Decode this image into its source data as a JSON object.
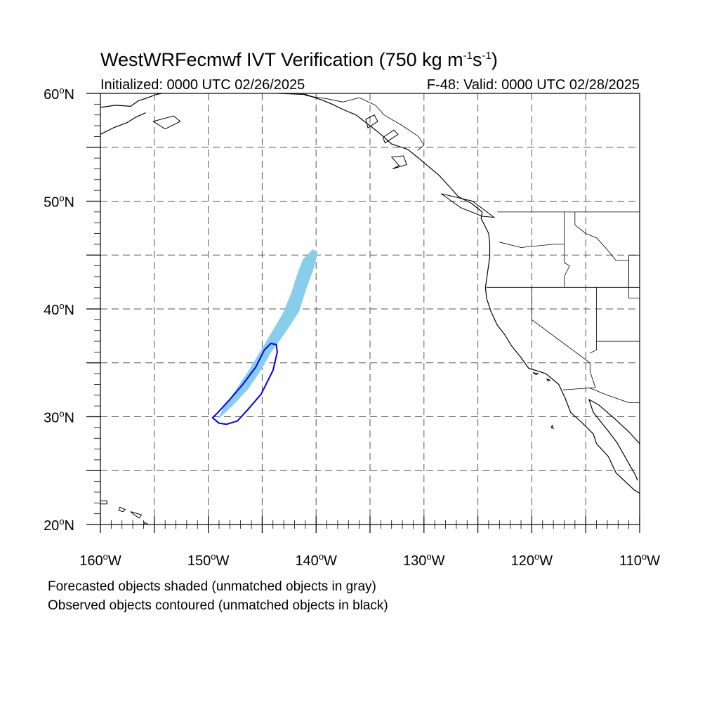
{
  "header": {
    "title_main": "WestWRFecmwf IVT Verification (750 kg m",
    "title_exp1": "-1",
    "title_mid": "s",
    "title_exp2": "-1",
    "title_end": ")",
    "initialized": "Initialized: 0000 UTC 02/26/2025",
    "valid": "F-48: Valid: 0000 UTC 02/28/2025"
  },
  "map": {
    "lat_range": [
      20,
      60
    ],
    "lon_range": [
      -160,
      -110
    ],
    "lat_labels": [
      {
        "lat": 60,
        "deg": "60",
        "hemi": "N"
      },
      {
        "lat": 50,
        "deg": "50",
        "hemi": "N"
      },
      {
        "lat": 40,
        "deg": "40",
        "hemi": "N"
      },
      {
        "lat": 30,
        "deg": "30",
        "hemi": "N"
      },
      {
        "lat": 20,
        "deg": "20",
        "hemi": "N"
      }
    ],
    "lon_labels": [
      {
        "lon": -160,
        "deg": "160",
        "hemi": "W"
      },
      {
        "lon": -150,
        "deg": "150",
        "hemi": "W"
      },
      {
        "lon": -140,
        "deg": "140",
        "hemi": "W"
      },
      {
        "lon": -130,
        "deg": "130",
        "hemi": "W"
      },
      {
        "lon": -120,
        "deg": "120",
        "hemi": "W"
      },
      {
        "lon": -110,
        "deg": "110",
        "hemi": "W"
      }
    ],
    "gridline_lats": [
      25,
      30,
      35,
      40,
      45,
      50,
      55
    ],
    "gridline_lons": [
      -155,
      -150,
      -145,
      -140,
      -135,
      -130,
      -125,
      -120,
      -115
    ],
    "grid_style": "dashed gray",
    "colors": {
      "forecast_matched": "#87ceeb",
      "observed_matched": "#0000ff",
      "coast": "#000000",
      "grid": "#555555"
    },
    "forecast_object": [
      [
        -149.0,
        29.9
      ],
      [
        -147.8,
        31.0
      ],
      [
        -146.3,
        32.6
      ],
      [
        -145.1,
        34.4
      ],
      [
        -144.2,
        36.0
      ],
      [
        -142.9,
        37.8
      ],
      [
        -141.6,
        39.8
      ],
      [
        -140.9,
        42.0
      ],
      [
        -140.2,
        43.9
      ],
      [
        -139.9,
        45.2
      ],
      [
        -140.3,
        45.5
      ],
      [
        -141.2,
        44.6
      ],
      [
        -141.8,
        43.0
      ],
      [
        -142.3,
        41.4
      ],
      [
        -143.1,
        39.5
      ],
      [
        -144.1,
        37.8
      ],
      [
        -145.3,
        35.8
      ],
      [
        -146.4,
        34.0
      ],
      [
        -147.6,
        32.2
      ],
      [
        -148.6,
        30.8
      ]
    ],
    "observed_object": [
      [
        -149.6,
        29.9
      ],
      [
        -149.0,
        29.4
      ],
      [
        -148.3,
        29.3
      ],
      [
        -147.3,
        29.6
      ],
      [
        -146.3,
        30.7
      ],
      [
        -145.1,
        32.1
      ],
      [
        -144.0,
        34.3
      ],
      [
        -143.6,
        36.0
      ],
      [
        -143.7,
        36.7
      ],
      [
        -144.2,
        36.8
      ],
      [
        -144.8,
        36.2
      ],
      [
        -145.6,
        34.6
      ],
      [
        -146.8,
        33.0
      ],
      [
        -148.0,
        31.6
      ],
      [
        -149.1,
        30.4
      ]
    ],
    "coastline": [
      [
        -143.5,
        60.0
      ],
      [
        -141.0,
        59.9
      ],
      [
        -139.5,
        59.4
      ],
      [
        -138.5,
        59.0
      ],
      [
        -137.5,
        58.5
      ],
      [
        -136.3,
        58.0
      ],
      [
        -135.0,
        57.0
      ],
      [
        -134.0,
        56.2
      ],
      [
        -133.0,
        55.3
      ],
      [
        -131.5,
        54.8
      ],
      [
        -130.5,
        54.0
      ],
      [
        -129.8,
        53.4
      ],
      [
        -128.6,
        52.4
      ],
      [
        -127.6,
        51.3
      ],
      [
        -126.8,
        50.4
      ],
      [
        -125.6,
        49.8
      ],
      [
        -124.6,
        49.0
      ],
      [
        -124.7,
        48.4
      ],
      [
        -124.0,
        47.0
      ],
      [
        -123.9,
        46.0
      ],
      [
        -123.9,
        44.8
      ],
      [
        -124.1,
        43.4
      ],
      [
        -124.3,
        42.0
      ],
      [
        -124.2,
        41.0
      ],
      [
        -123.8,
        39.8
      ],
      [
        -123.2,
        38.5
      ],
      [
        -122.5,
        37.6
      ],
      [
        -121.9,
        36.6
      ],
      [
        -121.0,
        35.5
      ],
      [
        -120.3,
        34.5
      ],
      [
        -118.7,
        34.0
      ],
      [
        -117.5,
        33.0
      ],
      [
        -116.9,
        31.7
      ],
      [
        -116.4,
        30.4
      ],
      [
        -115.4,
        29.5
      ],
      [
        -114.3,
        28.4
      ],
      [
        -114.0,
        27.5
      ],
      [
        -112.9,
        26.3
      ],
      [
        -112.2,
        24.8
      ],
      [
        -110.5,
        23.2
      ],
      [
        -110.0,
        22.9
      ]
    ],
    "gulf_coast": [
      [
        -110.0,
        27.5
      ],
      [
        -111.0,
        28.6
      ],
      [
        -112.3,
        29.8
      ],
      [
        -113.8,
        31.1
      ],
      [
        -114.7,
        31.6
      ],
      [
        -114.3,
        30.4
      ],
      [
        -113.1,
        28.9
      ],
      [
        -112.1,
        27.6
      ],
      [
        -111.2,
        26.0
      ],
      [
        -110.4,
        24.6
      ],
      [
        -110.2,
        24.1
      ]
    ],
    "alaska_west": [
      [
        -160.0,
        58.7
      ],
      [
        -158.6,
        58.9
      ],
      [
        -157.2,
        58.8
      ],
      [
        -156.5,
        59.3
      ],
      [
        -155.6,
        59.6
      ],
      [
        -154.8,
        59.9
      ],
      [
        -154.3,
        60.0
      ]
    ],
    "alaska_pen": [
      [
        -160.0,
        56.2
      ],
      [
        -158.8,
        56.8
      ],
      [
        -157.5,
        57.3
      ],
      [
        -156.7,
        57.8
      ],
      [
        -155.8,
        58.2
      ]
    ],
    "islands": [
      [
        [
          -135.2,
          56.8
        ],
        [
          -134.3,
          57.4
        ],
        [
          -134.6,
          58.0
        ],
        [
          -135.4,
          57.6
        ]
      ],
      [
        [
          -133.6,
          55.4
        ],
        [
          -132.4,
          56.2
        ],
        [
          -132.8,
          56.6
        ],
        [
          -133.8,
          55.9
        ]
      ],
      [
        [
          -132.9,
          53.0
        ],
        [
          -131.6,
          53.4
        ],
        [
          -131.9,
          54.2
        ],
        [
          -133.0,
          54.1
        ],
        [
          -132.3,
          53.3
        ]
      ],
      [
        [
          -128.4,
          50.7
        ],
        [
          -125.5,
          50.0
        ],
        [
          -123.5,
          48.5
        ],
        [
          -124.6,
          48.6
        ],
        [
          -126.6,
          49.4
        ]
      ],
      [
        [
          -155.1,
          57.4
        ],
        [
          -153.2,
          57.9
        ],
        [
          -152.6,
          57.4
        ],
        [
          -154.0,
          56.7
        ]
      ],
      [
        [
          -160.1,
          22.2
        ],
        [
          -159.4,
          22.2
        ],
        [
          -159.4,
          21.9
        ],
        [
          -160.0,
          21.9
        ]
      ],
      [
        [
          -158.2,
          21.6
        ],
        [
          -157.7,
          21.4
        ],
        [
          -157.9,
          21.2
        ],
        [
          -158.3,
          21.3
        ]
      ],
      [
        [
          -157.2,
          21.2
        ],
        [
          -156.2,
          20.9
        ],
        [
          -156.4,
          20.6
        ],
        [
          -157.0,
          21.0
        ]
      ],
      [
        [
          -155.9,
          20.2
        ],
        [
          -154.9,
          19.6
        ],
        [
          -155.6,
          19.0
        ],
        [
          -156.0,
          19.8
        ]
      ],
      [
        [
          -119.9,
          34.1
        ],
        [
          -119.4,
          34.0
        ],
        [
          -119.6,
          33.9
        ]
      ],
      [
        [
          -118.6,
          33.5
        ],
        [
          -118.3,
          33.4
        ],
        [
          -118.5,
          33.3
        ]
      ],
      [
        [
          -118.1,
          29.2
        ],
        [
          -118.0,
          28.9
        ],
        [
          -118.2,
          29.0
        ]
      ]
    ],
    "borders": [
      [
        [
          -141.0,
          60.0
        ],
        [
          -141.0,
          59.8
        ],
        [
          -139.0,
          59.5
        ],
        [
          -137.5,
          59.2
        ],
        [
          -136.0,
          59.6
        ],
        [
          -134.5,
          58.9
        ],
        [
          -133.7,
          58.0
        ],
        [
          -132.0,
          57.0
        ],
        [
          -130.5,
          56.0
        ],
        [
          -130.0,
          55.2
        ],
        [
          -130.6,
          54.7
        ]
      ],
      [
        [
          -123.2,
          49.0
        ],
        [
          -110.0,
          49.0
        ]
      ],
      [
        [
          -124.2,
          42.0
        ],
        [
          -110.0,
          42.0
        ]
      ],
      [
        [
          -120.0,
          42.0
        ],
        [
          -120.0,
          39.0
        ],
        [
          -114.6,
          35.0
        ],
        [
          -114.6,
          34.2
        ],
        [
          -114.1,
          32.7
        ],
        [
          -117.1,
          32.5
        ]
      ],
      [
        [
          -114.7,
          32.7
        ],
        [
          -113.0,
          32.0
        ],
        [
          -111.0,
          31.3
        ],
        [
          -110.0,
          31.3
        ]
      ],
      [
        [
          -123.0,
          46.2
        ],
        [
          -121.0,
          45.7
        ],
        [
          -118.0,
          46.0
        ],
        [
          -117.0,
          46.0
        ]
      ],
      [
        [
          -117.0,
          49.0
        ],
        [
          -117.0,
          44.3
        ],
        [
          -116.5,
          44.0
        ],
        [
          -117.0,
          43.0
        ],
        [
          -117.0,
          42.0
        ]
      ],
      [
        [
          -116.0,
          49.0
        ],
        [
          -116.0,
          47.8
        ],
        [
          -115.0,
          47.0
        ],
        [
          -114.0,
          46.6
        ],
        [
          -113.0,
          45.5
        ],
        [
          -112.2,
          44.5
        ],
        [
          -111.0,
          44.5
        ],
        [
          -111.0,
          42.0
        ]
      ],
      [
        [
          -114.0,
          42.0
        ],
        [
          -114.0,
          36.2
        ],
        [
          -114.6,
          35.9
        ]
      ],
      [
        [
          -110.0,
          45.0
        ],
        [
          -111.0,
          45.0
        ],
        [
          -111.0,
          41.0
        ],
        [
          -110.0,
          41.0
        ]
      ],
      [
        [
          -114.0,
          37.0
        ],
        [
          -110.0,
          37.0
        ]
      ]
    ]
  },
  "footer": {
    "line1": "Forecasted objects shaded (unmatched objects in gray)",
    "line2": "Observed objects contoured (unmatched objects in black)"
  }
}
